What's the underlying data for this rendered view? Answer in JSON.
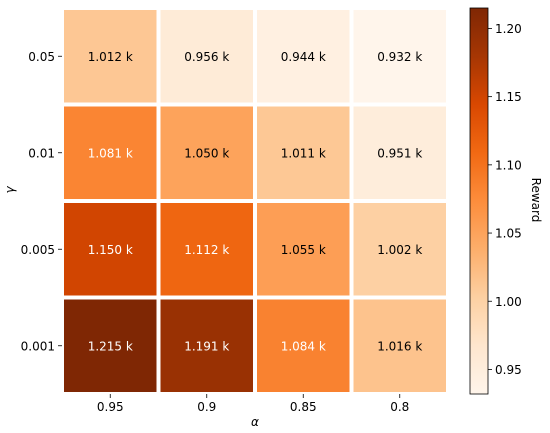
{
  "chart_data": {
    "type": "heatmap",
    "x_categories": [
      "0.95",
      "0.9",
      "0.85",
      "0.8"
    ],
    "y_categories": [
      "0.05",
      "0.01",
      "0.005",
      "0.001"
    ],
    "xlabel": "α",
    "ylabel": "γ",
    "values": [
      [
        1.012,
        0.956,
        0.944,
        0.932
      ],
      [
        1.081,
        1.05,
        1.011,
        0.951
      ],
      [
        1.15,
        1.112,
        1.055,
        1.002
      ],
      [
        1.215,
        1.191,
        1.084,
        1.016
      ]
    ],
    "cell_labels": [
      [
        "1.012 k",
        "0.956 k",
        "0.944 k",
        "0.932 k"
      ],
      [
        "1.081 k",
        "1.050 k",
        "1.011 k",
        "0.951 k"
      ],
      [
        "1.150 k",
        "1.112 k",
        "1.055 k",
        "1.002 k"
      ],
      [
        "1.215 k",
        "1.191 k",
        "1.084 k",
        "1.016 k"
      ]
    ],
    "colorbar": {
      "label": "Reward",
      "range": [
        0.932,
        1.215
      ],
      "ticks": [
        0.95,
        1.0,
        1.05,
        1.1,
        1.15,
        1.2
      ],
      "tick_labels": [
        "0.95",
        "1.00",
        "1.05",
        "1.10",
        "1.15",
        "1.20"
      ],
      "colormap": "Oranges"
    },
    "grid": false
  }
}
